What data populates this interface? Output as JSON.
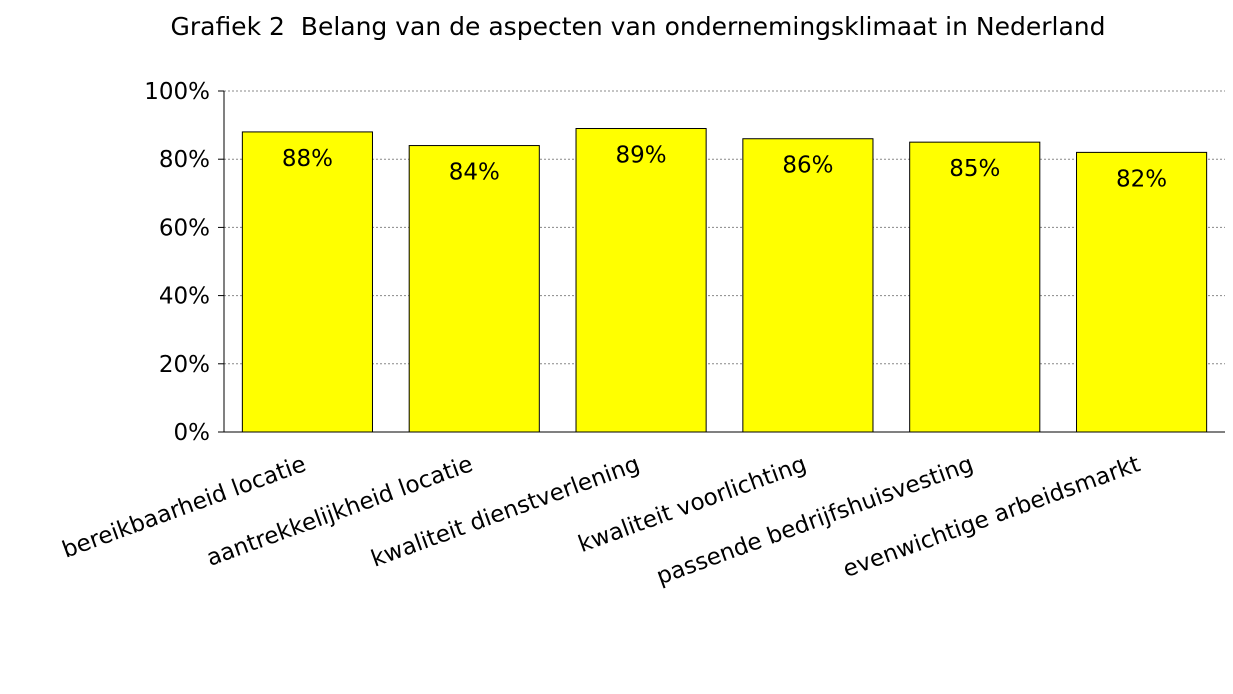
{
  "chart_data": {
    "type": "bar",
    "title": "Grafiek 2  Belang van de aspecten van ondernemingsklimaat in Nederland",
    "categories": [
      "bereikbaarheid locatie",
      "aantrekkelijkheid locatie",
      "kwaliteit dienstverlening",
      "kwaliteit voorlichting",
      "passende bedrijfshuisvesting",
      "evenwichtige arbeidsmarkt"
    ],
    "values": [
      88,
      84,
      89,
      86,
      85,
      82
    ],
    "value_labels": [
      "88%",
      "84%",
      "89%",
      "86%",
      "85%",
      "82%"
    ],
    "color": "#ffff00",
    "ylim": [
      0,
      100
    ],
    "yticks": [
      {
        "value": 0,
        "label": "0%"
      },
      {
        "value": 20,
        "label": "20%"
      },
      {
        "value": 40,
        "label": "40%"
      },
      {
        "value": 60,
        "label": "60%"
      },
      {
        "value": 80,
        "label": "80%"
      },
      {
        "value": 100,
        "label": "100%"
      }
    ],
    "grid": true
  }
}
